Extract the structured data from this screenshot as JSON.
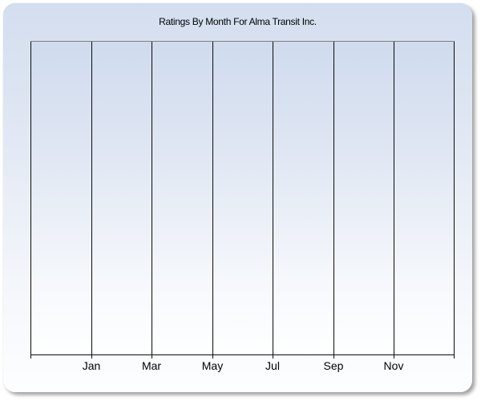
{
  "chart_data": {
    "type": "line",
    "title": "Ratings By Month For Alma Transit Inc.",
    "xlabel": "",
    "ylabel": "",
    "x_tick_labels": [
      "Jan",
      "Mar",
      "May",
      "Jul",
      "Sep",
      "Nov"
    ],
    "series": [],
    "layout": {
      "grid": "vertical-only",
      "gridline_count": 8,
      "labeled_gridline_indices": [
        1,
        2,
        3,
        4,
        5,
        6
      ],
      "legend": "none",
      "y_axis_labels": "none",
      "plot_is_empty": true
    },
    "colors": {
      "panel_gradient_top": "#d3deef",
      "panel_gradient_bottom": "#fdfeff",
      "plot_gradient_top": "#cfdbee",
      "plot_gradient_bottom": "#feffff",
      "grid_and_axis_lines": "#0b0b0b",
      "plot_top_border": "#7f7f7f",
      "text": "#000000",
      "page_background": "#ffffff"
    }
  }
}
